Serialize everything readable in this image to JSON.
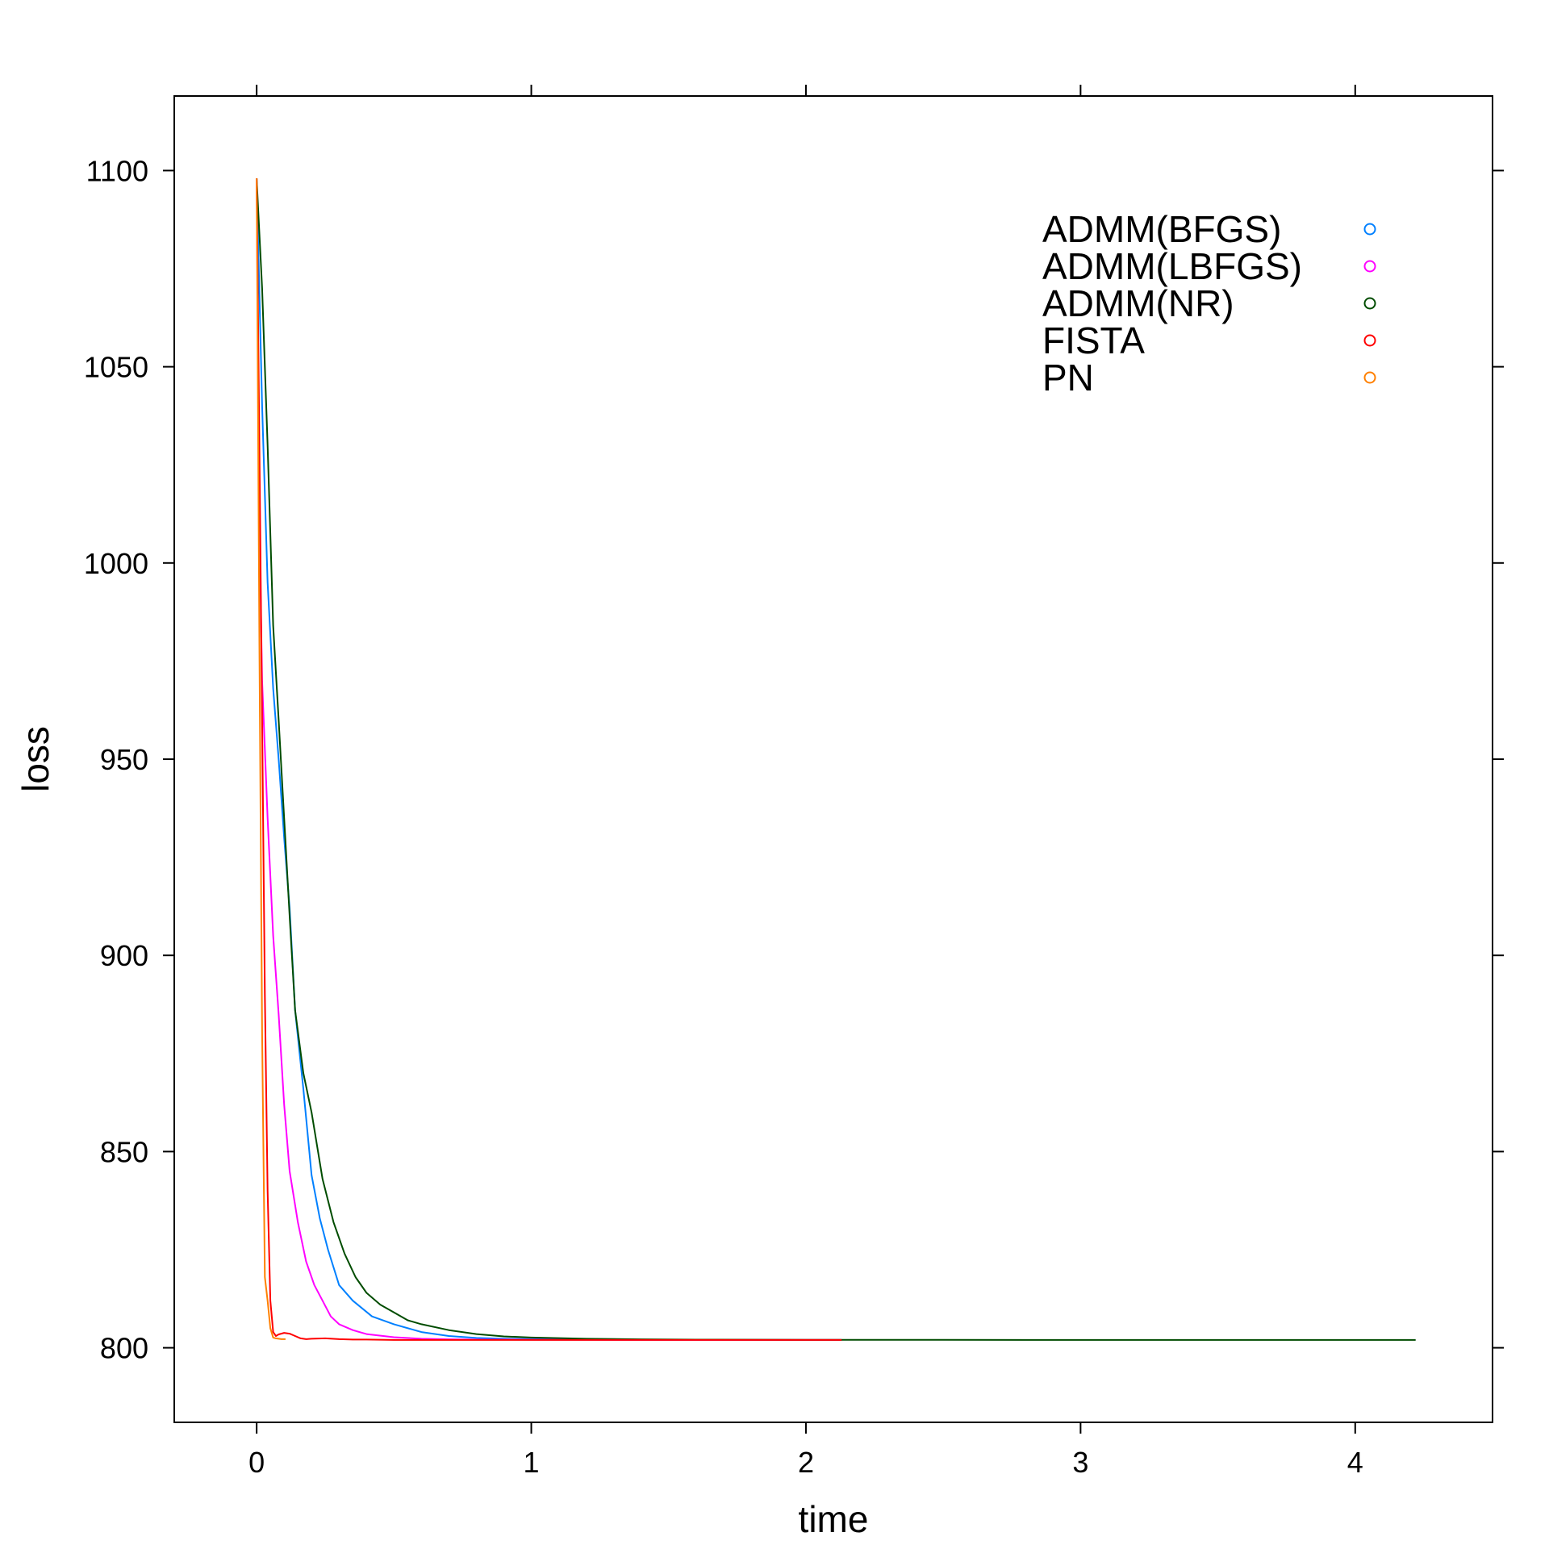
{
  "chart_data": {
    "type": "line",
    "title": "",
    "xlabel": "time",
    "ylabel": "loss",
    "xlim": [
      -0.3,
      4.5
    ],
    "ylim": [
      781,
      1119
    ],
    "x_ticks": [
      0,
      1,
      2,
      3,
      4
    ],
    "y_ticks": [
      800,
      850,
      900,
      950,
      1000,
      1050,
      1100
    ],
    "grid": false,
    "legend_position": "top-right",
    "series": [
      {
        "name": "ADMM(BFGS)",
        "color": "#0080ff",
        "x": [
          0,
          0.02,
          0.04,
          0.06,
          0.08,
          0.1,
          0.12,
          0.14,
          0.17,
          0.2,
          0.23,
          0.26,
          0.3,
          0.35,
          0.42,
          0.5,
          0.6,
          0.7,
          0.8,
          0.9,
          1.0,
          1.2,
          1.4,
          1.6,
          1.8,
          2.0,
          2.13
        ],
        "y": [
          1098,
          1040,
          995,
          968,
          950,
          930,
          912,
          886,
          866,
          844,
          833,
          825,
          816,
          812,
          808,
          806,
          804,
          803,
          802.5,
          802.3,
          802.2,
          802.1,
          802.05,
          802.02,
          802.01,
          802,
          802
        ]
      },
      {
        "name": "ADMM(LBFGS)",
        "color": "#ff00ff",
        "x": [
          0,
          0.01,
          0.02,
          0.04,
          0.06,
          0.08,
          0.1,
          0.12,
          0.15,
          0.18,
          0.21,
          0.24,
          0.27,
          0.3,
          0.35,
          0.4,
          0.5,
          0.6,
          0.7,
          0.8,
          1.0,
          1.2,
          1.5,
          1.8,
          2.13
        ],
        "y": [
          1098,
          1010,
          970,
          935,
          905,
          885,
          862,
          845,
          832,
          822,
          816,
          812,
          808,
          806,
          804.5,
          803.5,
          802.7,
          802.3,
          802.15,
          802.1,
          802.05,
          802.02,
          802,
          802,
          802
        ]
      },
      {
        "name": "ADMM(NR)",
        "color": "#004c00",
        "x": [
          0,
          0.02,
          0.04,
          0.06,
          0.08,
          0.1,
          0.12,
          0.14,
          0.17,
          0.2,
          0.24,
          0.28,
          0.32,
          0.36,
          0.4,
          0.45,
          0.5,
          0.55,
          0.6,
          0.7,
          0.8,
          0.9,
          1.0,
          1.2,
          1.4,
          1.6,
          2.0,
          2.5,
          3.0,
          3.5,
          4.0,
          4.22
        ],
        "y": [
          1098,
          1070,
          1030,
          984,
          960,
          935,
          910,
          886,
          870,
          860,
          843,
          832,
          824,
          818,
          814,
          811,
          809,
          807,
          806,
          804.5,
          803.5,
          802.9,
          802.6,
          802.3,
          802.15,
          802.08,
          802.03,
          802.01,
          802,
          802,
          802,
          802
        ]
      },
      {
        "name": "FISTA",
        "color": "#ff0000",
        "x": [
          0,
          0.01,
          0.02,
          0.03,
          0.04,
          0.05,
          0.06,
          0.07,
          0.08,
          0.1,
          0.12,
          0.14,
          0.16,
          0.18,
          0.2,
          0.25,
          0.3,
          0.35,
          0.4,
          0.5,
          0.6,
          0.8,
          1.0,
          1.5,
          2.0,
          2.13
        ],
        "y": [
          1098,
          1030,
          960,
          890,
          840,
          812,
          804,
          803,
          803.4,
          803.8,
          803.6,
          803,
          802.4,
          802.2,
          802.3,
          802.4,
          802.2,
          802.1,
          802.1,
          802,
          802,
          802,
          802,
          802,
          802,
          802
        ]
      },
      {
        "name": "PN",
        "color": "#ff8000",
        "x": [
          0,
          0.01,
          0.02,
          0.03,
          0.04,
          0.05,
          0.06,
          0.07,
          0.08,
          0.09,
          0.1,
          0.105
        ],
        "y": [
          1098,
          980,
          880,
          818,
          812,
          805,
          802.6,
          802.4,
          802.3,
          802.2,
          802.2,
          802.2
        ]
      }
    ]
  }
}
